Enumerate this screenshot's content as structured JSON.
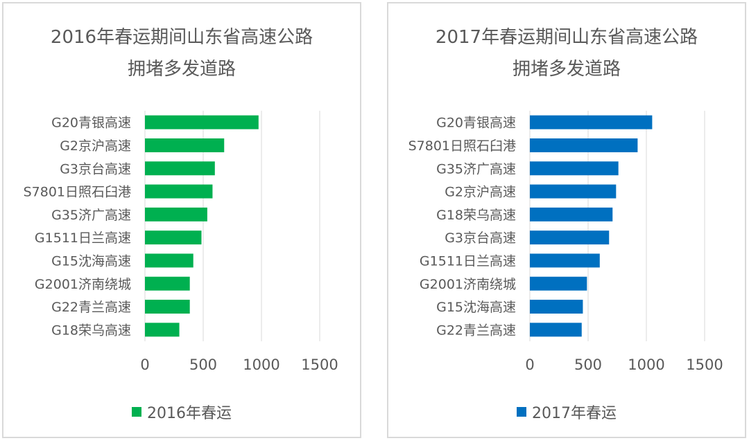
{
  "chart_data": [
    {
      "type": "bar",
      "orientation": "horizontal",
      "title": "2016年春运期间山东省高速公路",
      "title_line2": "拥堵多发道路",
      "categories": [
        "G20青银高速",
        "G2京沪高速",
        "G3京台高速",
        "S7801日照石臼港",
        "G35济广高速",
        "G1511日兰高速",
        "G15沈海高速",
        "G2001济南绕城",
        "G22青兰高速",
        "G18荣乌高速"
      ],
      "series": [
        {
          "name": "2016年春运",
          "values": [
            975,
            680,
            600,
            580,
            535,
            485,
            415,
            385,
            385,
            295
          ]
        }
      ],
      "xlim": [
        0,
        1500
      ],
      "xticks": [
        "0",
        "500",
        "1000",
        "1500"
      ],
      "color": "#00b050",
      "grid": true,
      "legend": "bottom"
    },
    {
      "type": "bar",
      "orientation": "horizontal",
      "title": "2017年春运期间山东省高速公路",
      "title_line2": "拥堵多发道路",
      "categories": [
        "G20青银高速",
        "S7801日照石臼港",
        "G35济广高速",
        "G2京沪高速",
        "G18荣乌高速",
        "G3京台高速",
        "G1511日兰高速",
        "G2001济南绕城",
        "G15沈海高速",
        "G22青兰高速"
      ],
      "series": [
        {
          "name": "2017年春运",
          "values": [
            1050,
            925,
            760,
            740,
            710,
            680,
            600,
            490,
            455,
            445
          ]
        }
      ],
      "xlim": [
        0,
        1500
      ],
      "xticks": [
        "0",
        "500",
        "1000",
        "1500"
      ],
      "color": "#0070c0",
      "grid": true,
      "legend": "bottom"
    }
  ]
}
